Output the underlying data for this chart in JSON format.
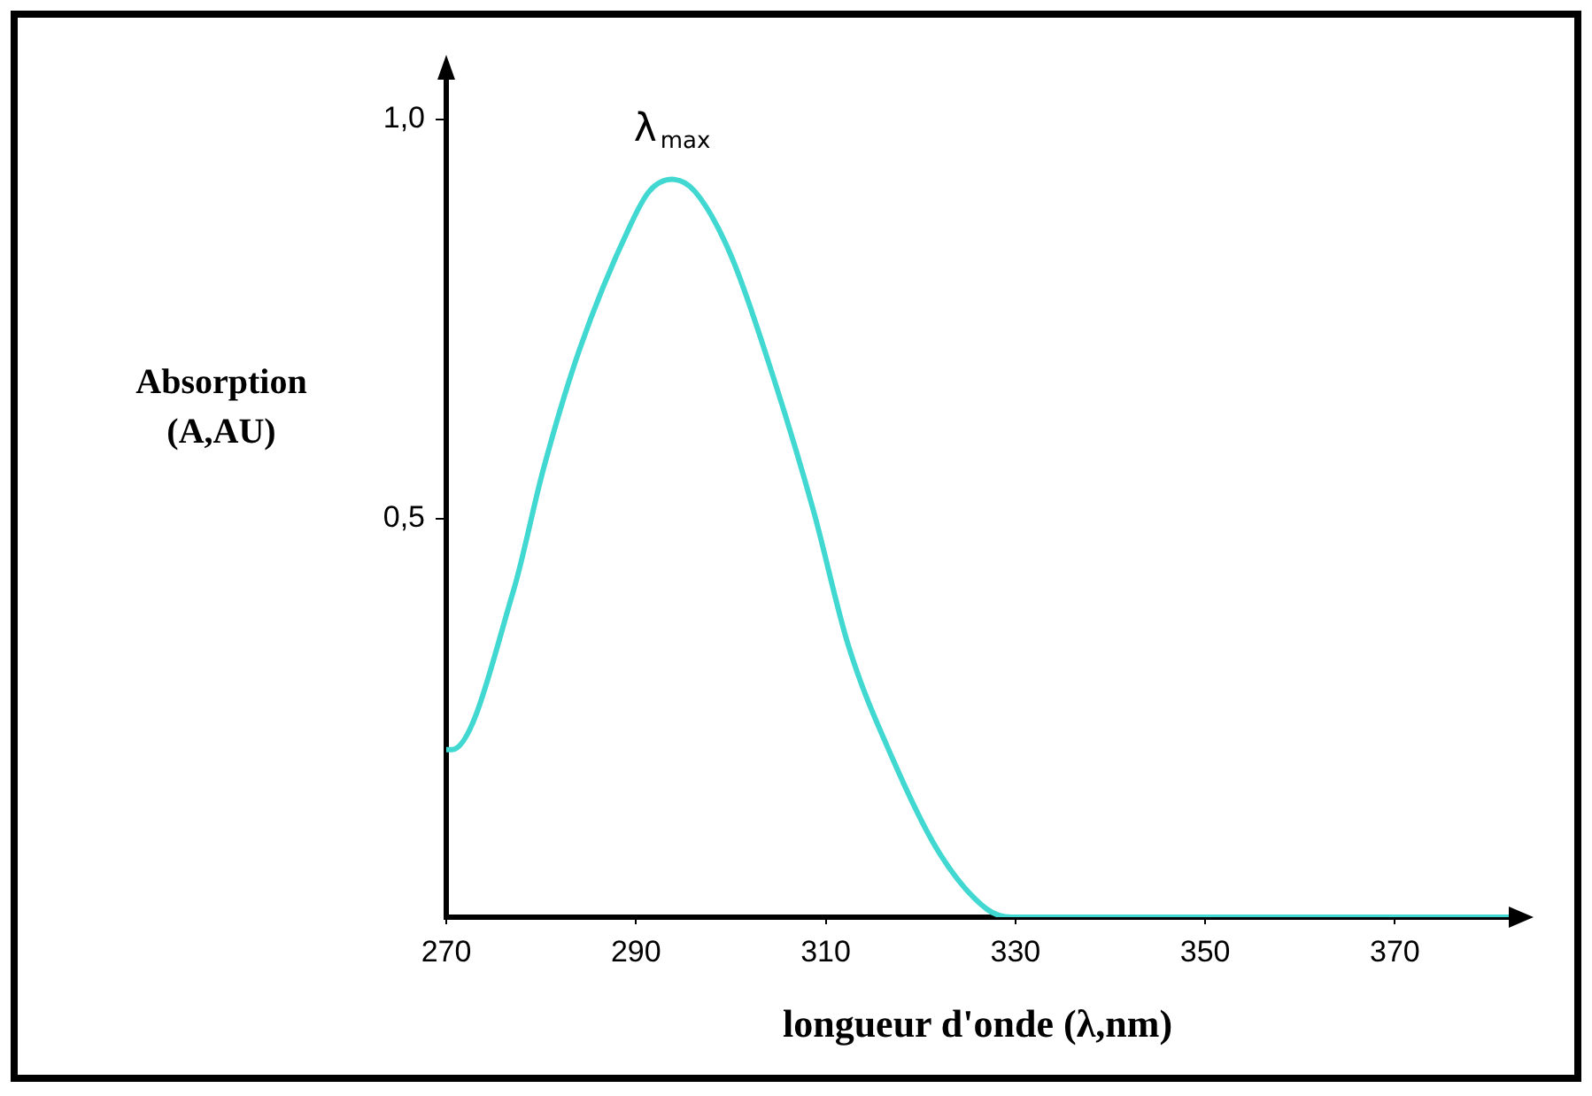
{
  "chart_data": {
    "type": "line",
    "xlabel": "longueur d'onde (λ,nm)",
    "ylabel": "Absorption (A,AU)",
    "x": [
      270,
      270.6,
      277.1,
      280.2,
      284,
      289.5,
      291.4,
      293.8,
      296.2,
      300,
      304.4,
      308.7,
      312.4,
      317,
      322,
      327,
      329.6,
      340,
      360,
      382
    ],
    "series": [
      {
        "color": "#40d8d0",
        "values": [
          0.21,
          0.21,
          0.41,
          0.56,
          0.71,
          0.87,
          0.91,
          0.925,
          0.91,
          0.83,
          0.68,
          0.51,
          0.34,
          0.2,
          0.08,
          0.01,
          0,
          0,
          0,
          0
        ]
      }
    ],
    "xlim": [
      270,
      382
    ],
    "ylim": [
      0,
      1.05
    ],
    "xticks": [
      270,
      290,
      310,
      330,
      350,
      370
    ],
    "yticks": [
      {
        "value": 0.5,
        "label": "0,5"
      },
      {
        "value": 1,
        "label": "1,0"
      }
    ],
    "annotations": [
      "λ$_{max}$"
    ],
    "grid": false,
    "legend": false,
    "marker": "none",
    "line_style": "solid"
  }
}
